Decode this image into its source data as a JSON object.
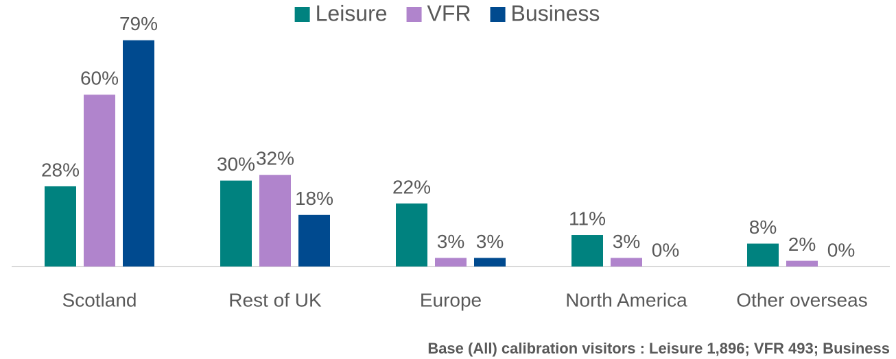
{
  "chart_data": {
    "type": "bar",
    "categories": [
      "Scotland",
      "Rest of UK",
      "Europe",
      "North America",
      "Other overseas"
    ],
    "series": [
      {
        "name": "Leisure",
        "color": "#00827f",
        "values": [
          28,
          30,
          22,
          11,
          8
        ],
        "value_labels": [
          "28%",
          "30%",
          "22%",
          "11%",
          "8%"
        ]
      },
      {
        "name": "VFR",
        "color": "#b084cc",
        "values": [
          60,
          32,
          3,
          3,
          2
        ],
        "value_labels": [
          "60%",
          "32%",
          "3%",
          "3%",
          "2%"
        ]
      },
      {
        "name": "Business",
        "color": "#004a8f",
        "values": [
          79,
          18,
          3,
          0,
          0
        ],
        "value_labels": [
          "79%",
          "18%",
          "3%",
          "0%",
          "0%"
        ]
      }
    ],
    "legend": "top",
    "footnote": "Base (All) calibration visitors : Leisure 1,896; VFR 493; Business"
  }
}
